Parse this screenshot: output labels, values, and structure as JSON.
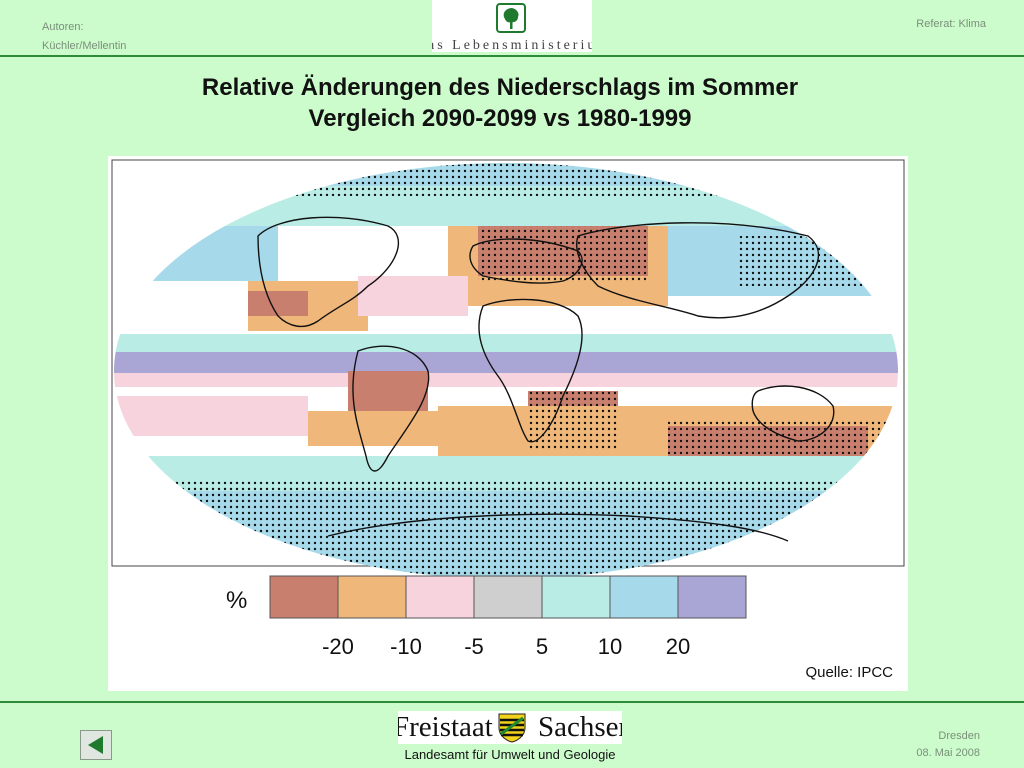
{
  "header": {
    "authors_label": "Autoren:",
    "authors_names": "Küchler/Mellentin",
    "topic": "Referat: Klima",
    "logo_text": "as Lebensministerium"
  },
  "title": {
    "line1": "Relative Änderungen des Niederschlags im Sommer",
    "line2": "Vergleich 2090-2099 vs 1980-1999"
  },
  "map": {
    "legend": {
      "unit": "%",
      "colors": [
        "#c97f6e",
        "#f0b77a",
        "#f7d3dd",
        "#cfcfcf",
        "#b9ece5",
        "#a6d9ea",
        "#a9a6d6"
      ],
      "ticks": [
        "-20",
        "-10",
        "-5",
        "5",
        "10",
        "20"
      ]
    },
    "source": "Quelle: IPCC"
  },
  "footer": {
    "logo_word_left": "Freistaat",
    "logo_word_right": "Sachsen",
    "subtitle": "Landesamt für Umwelt und Geologie",
    "city": "Dresden",
    "date": "08. Mai 2008"
  },
  "colors": {
    "background": "#ccfccc",
    "rule": "#2e8b3a",
    "nav_arrow": "#1f7a2e"
  }
}
